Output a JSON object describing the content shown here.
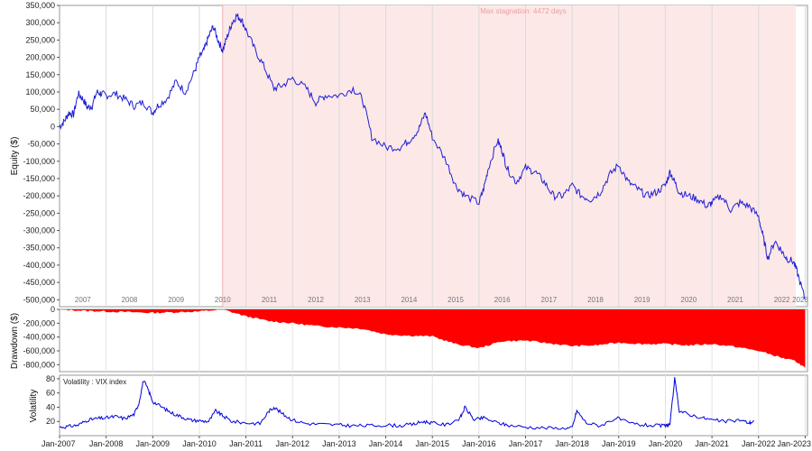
{
  "chart_data": [
    {
      "type": "line",
      "ylabel": "Equity ($)",
      "ylim": [
        -520000,
        350000
      ],
      "yticks": [
        350000,
        300000,
        250000,
        200000,
        150000,
        100000,
        50000,
        0,
        -50000,
        -100000,
        -150000,
        -200000,
        -250000,
        -300000,
        -350000,
        -400000,
        -450000,
        -500000
      ],
      "ytick_labels": [
        "350,000",
        "300,000",
        "250,000",
        "200,000",
        "150,000",
        "100,000",
        "50,000",
        "0",
        "-50,000",
        "-100,000",
        "-150,000",
        "-200,000",
        "-250,000",
        "-300,000",
        "-350,000",
        "-400,000",
        "-450,000",
        "-500,000"
      ],
      "year_labels": [
        "2007",
        "2008",
        "2009",
        "2010",
        "2011",
        "2012",
        "2013",
        "2014",
        "2015",
        "2016",
        "2017",
        "2018",
        "2019",
        "2020",
        "2021",
        "2022",
        "2023"
      ],
      "annotation": "Max stagnation: 4472 days",
      "stagnation_range": [
        2010.5,
        2022.8
      ],
      "line_color": "#1f1fd6",
      "stagnation_color": "#fde8e8",
      "series": [
        {
          "x": [
            2007.0,
            2007.1,
            2007.2,
            2007.3,
            2007.4,
            2007.5,
            2007.6,
            2007.7,
            2007.8,
            2007.9,
            2008.0,
            2008.2,
            2008.4,
            2008.6,
            2008.8,
            2009.0,
            2009.1,
            2009.3,
            2009.5,
            2009.7,
            2009.9,
            2010.0,
            2010.1,
            2010.2,
            2010.3,
            2010.4,
            2010.5,
            2010.6,
            2010.7,
            2010.8,
            2010.9,
            2011.0,
            2011.2,
            2011.4,
            2011.6,
            2011.8,
            2012.0,
            2012.3,
            2012.5,
            2012.7,
            2013.0,
            2013.3,
            2013.5,
            2013.7,
            2014.0,
            2014.3,
            2014.5,
            2014.7,
            2014.85,
            2015.0,
            2015.3,
            2015.5,
            2015.7,
            2016.0,
            2016.1,
            2016.2,
            2016.4,
            2016.5,
            2016.6,
            2016.8,
            2017.0,
            2017.2,
            2017.4,
            2017.6,
            2017.8,
            2018.0,
            2018.2,
            2018.4,
            2018.6,
            2018.8,
            2019.0,
            2019.2,
            2019.4,
            2019.6,
            2019.8,
            2020.0,
            2020.1,
            2020.2,
            2020.3,
            2020.5,
            2020.7,
            2020.9,
            2021.0,
            2021.2,
            2021.4,
            2021.6,
            2021.8,
            2022.0,
            2022.1,
            2022.2,
            2022.35,
            2022.5,
            2022.6,
            2022.75,
            2022.85,
            2023.0
          ],
          "y": [
            0,
            15000,
            40000,
            35000,
            95000,
            80000,
            55000,
            60000,
            100000,
            95000,
            90000,
            95000,
            80000,
            60000,
            70000,
            40000,
            60000,
            80000,
            130000,
            100000,
            160000,
            200000,
            220000,
            260000,
            290000,
            250000,
            220000,
            260000,
            300000,
            320000,
            310000,
            280000,
            220000,
            170000,
            110000,
            120000,
            140000,
            110000,
            70000,
            90000,
            90000,
            110000,
            80000,
            -30000,
            -60000,
            -60000,
            -40000,
            -10000,
            40000,
            -30000,
            -100000,
            -170000,
            -200000,
            -220000,
            -180000,
            -120000,
            -40000,
            -70000,
            -120000,
            -160000,
            -120000,
            -130000,
            -160000,
            -200000,
            -200000,
            -170000,
            -200000,
            -210000,
            -190000,
            -140000,
            -110000,
            -160000,
            -180000,
            -200000,
            -190000,
            -170000,
            -130000,
            -160000,
            -190000,
            -200000,
            -210000,
            -230000,
            -220000,
            -200000,
            -240000,
            -220000,
            -230000,
            -260000,
            -320000,
            -380000,
            -330000,
            -360000,
            -380000,
            -390000,
            -430000,
            -500000
          ]
        }
      ]
    },
    {
      "type": "area",
      "ylabel": "Drawdown ($)",
      "ylim": [
        -900000,
        0
      ],
      "yticks": [
        0,
        -200000,
        -400000,
        -600000,
        -800000
      ],
      "ytick_labels": [
        "0",
        "-200,000",
        "-400,000",
        "-600,000",
        "-800,000"
      ],
      "fill_color": "#ff0000",
      "series": [
        {
          "x": [
            2007.0,
            2007.5,
            2008.0,
            2008.5,
            2009.0,
            2009.5,
            2010.0,
            2010.5,
            2011.0,
            2011.5,
            2012.0,
            2012.5,
            2013.0,
            2013.5,
            2014.0,
            2014.5,
            2015.0,
            2015.5,
            2016.0,
            2016.5,
            2017.0,
            2017.5,
            2018.0,
            2018.5,
            2019.0,
            2019.5,
            2020.0,
            2020.5,
            2021.0,
            2021.5,
            2022.0,
            2022.5,
            2022.8,
            2023.0
          ],
          "y": [
            0,
            -20000,
            -30000,
            -40000,
            -50000,
            -40000,
            -30000,
            0,
            -100000,
            -170000,
            -200000,
            -240000,
            -260000,
            -280000,
            -360000,
            -380000,
            -390000,
            -500000,
            -560000,
            -460000,
            -450000,
            -490000,
            -530000,
            -520000,
            -480000,
            -500000,
            -500000,
            -520000,
            -500000,
            -540000,
            -600000,
            -700000,
            -750000,
            -850000
          ]
        }
      ]
    },
    {
      "type": "line",
      "ylabel": "Volatility",
      "ylim": [
        0,
        85
      ],
      "yticks": [
        80,
        60,
        40,
        20
      ],
      "ytick_labels": [
        "80",
        "60",
        "40",
        "20"
      ],
      "legend": "Volatility : VIX index",
      "line_color": "#0000dd",
      "series": [
        {
          "name": "Volatility : VIX index",
          "x": [
            2007.0,
            2007.2,
            2007.4,
            2007.6,
            2007.8,
            2008.0,
            2008.2,
            2008.4,
            2008.6,
            2008.7,
            2008.8,
            2008.9,
            2009.0,
            2009.2,
            2009.4,
            2009.6,
            2009.8,
            2010.0,
            2010.2,
            2010.35,
            2010.5,
            2010.7,
            2011.0,
            2011.3,
            2011.5,
            2011.6,
            2011.8,
            2012.0,
            2012.3,
            2012.6,
            2013.0,
            2013.3,
            2013.6,
            2014.0,
            2014.3,
            2014.6,
            2014.8,
            2015.0,
            2015.3,
            2015.6,
            2015.7,
            2015.9,
            2016.1,
            2016.4,
            2016.6,
            2017.0,
            2017.4,
            2017.8,
            2018.0,
            2018.1,
            2018.3,
            2018.6,
            2018.95,
            2019.2,
            2019.5,
            2019.8,
            2020.0,
            2020.1,
            2020.2,
            2020.3,
            2020.5,
            2020.8,
            2021.0,
            2021.3,
            2021.6,
            2021.8,
            2021.9
          ],
          "y": [
            12,
            13,
            15,
            22,
            24,
            25,
            27,
            24,
            30,
            45,
            78,
            65,
            48,
            40,
            32,
            27,
            22,
            21,
            20,
            35,
            28,
            20,
            18,
            17,
            35,
            40,
            30,
            22,
            17,
            16,
            15,
            14,
            14,
            15,
            14,
            16,
            20,
            18,
            15,
            25,
            40,
            22,
            25,
            18,
            15,
            12,
            11,
            10,
            11,
            35,
            18,
            14,
            25,
            18,
            15,
            14,
            14,
            16,
            80,
            35,
            30,
            25,
            22,
            20,
            22,
            18,
            20
          ]
        }
      ]
    },
    {
      "type": "axis",
      "xtick_labels": [
        "Jan-2007",
        "Jan-2008",
        "Jan-2009",
        "Jan-2010",
        "Jan-2011",
        "Jan-2012",
        "Jan-2013",
        "Jan-2014",
        "Jan-2015",
        "Jan-2016",
        "Jan-2017",
        "Jan-2018",
        "Jan-2019",
        "Jan-2020",
        "Jan-2021",
        "Jan-2022",
        "Jan-2023"
      ]
    }
  ]
}
